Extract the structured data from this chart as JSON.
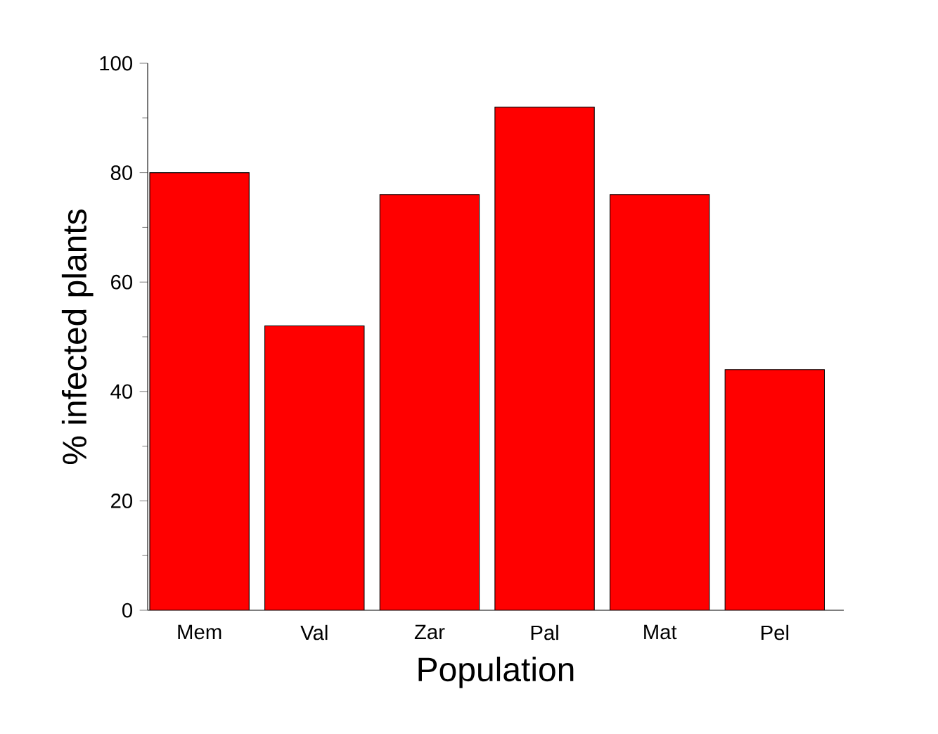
{
  "chart_data": {
    "type": "bar",
    "xlabel": "Population",
    "ylabel": "% infected plants",
    "categories": [
      "Mem",
      "Val",
      "Zar",
      "Pal",
      "Mat",
      "Pel"
    ],
    "values": [
      80,
      52,
      76,
      92,
      76,
      44
    ],
    "color": "#ff0000",
    "ylim": [
      0,
      100
    ],
    "yticks": [
      0,
      20,
      40,
      60,
      80,
      100
    ],
    "grid": false
  }
}
